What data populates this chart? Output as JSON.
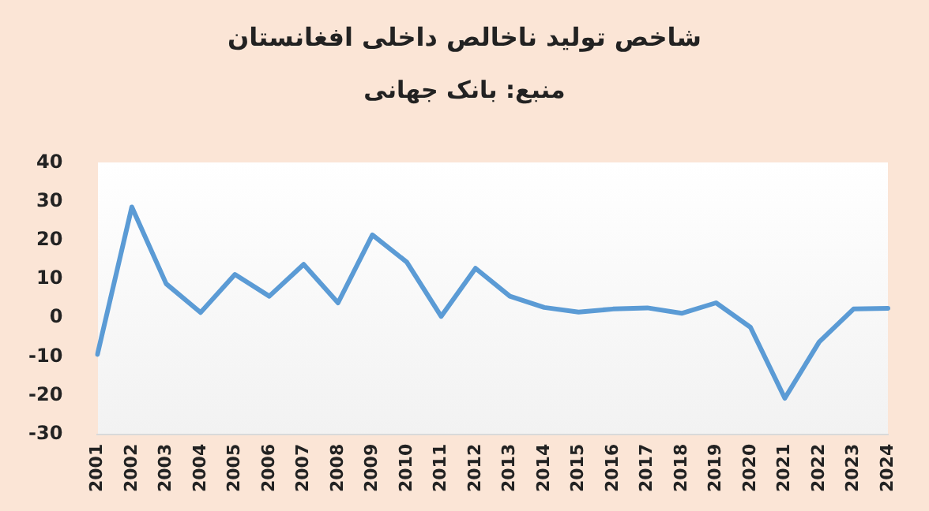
{
  "chart_data": {
    "type": "line",
    "title": "شاخص تولید ناخالص داخلی افغانستان",
    "subtitle": "منبع: بانک جهانی",
    "categories": [
      "2001",
      "2002",
      "2003",
      "2004",
      "2005",
      "2006",
      "2007",
      "2008",
      "2009",
      "2010",
      "2011",
      "2012",
      "2013",
      "2014",
      "2015",
      "2016",
      "2017",
      "2018",
      "2019",
      "2020",
      "2021",
      "2022",
      "2023",
      "2024"
    ],
    "series": [
      {
        "color": "#5b9bd5",
        "values": [
          -9.4,
          28.6,
          8.8,
          1.4,
          11.2,
          5.6,
          13.8,
          3.9,
          21.4,
          14.4,
          0.4,
          12.8,
          5.6,
          2.7,
          1.5,
          2.3,
          2.6,
          1.2,
          3.9,
          -2.4,
          -20.7,
          -6.2,
          2.3,
          2.5
        ]
      }
    ],
    "ylim": [
      -30,
      40
    ],
    "yticks": [
      -30,
      -20,
      -10,
      0,
      10,
      20,
      30,
      40
    ],
    "grid": false,
    "legend": false,
    "marker": "none",
    "line_style": "solid"
  }
}
